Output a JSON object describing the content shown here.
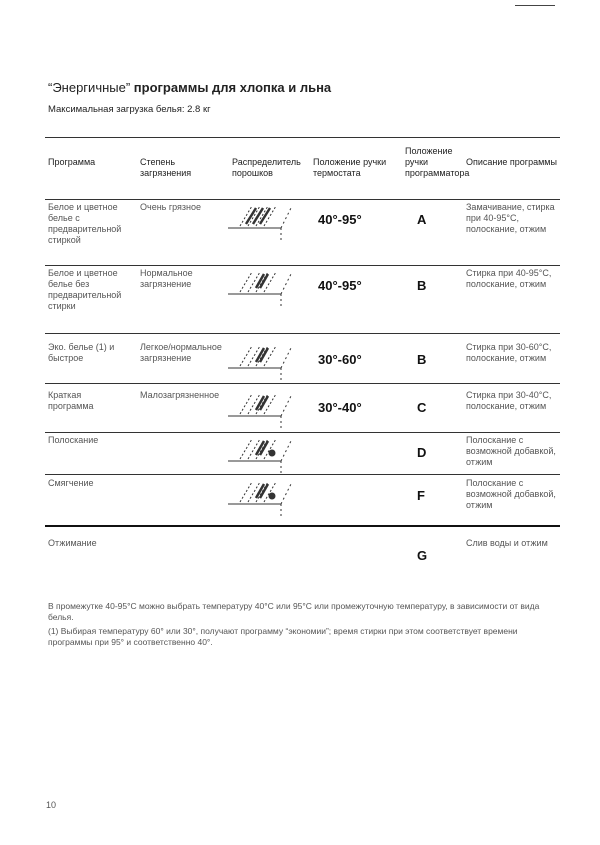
{
  "title": {
    "quoted": "“Энергичные”",
    "rest": " программы для хлопка и льна"
  },
  "subtitle": "Максимальная загрузка белья: 2.8 кг",
  "headers": [
    "Программа",
    "Степень загрязнения",
    "Распределитель порошков",
    "Положение ручки термостата",
    "Положение ручки программатора",
    "Описание программы"
  ],
  "rows": [
    {
      "program": "Белое и цветное белье с предварительной стиркой",
      "soil": "Очень грязное",
      "dispenser_icon": "detergent-dispenser-prewash-icon",
      "temp": "40°-95°",
      "position": "A",
      "description": "Замачивание, стирка при 40-95°C, полоскание, отжим"
    },
    {
      "program": "Белое и цветное белье без предварительной стирки",
      "soil": "Нормальное загрязнение",
      "dispenser_icon": "detergent-dispenser-wash-icon",
      "temp": "40°-95°",
      "position": "B",
      "description": "Стирка при 40-95°C, полоскание, отжим"
    },
    {
      "program": "Эко. белье (1) и быстрое",
      "soil": "Легкое/нормальное загрязнение",
      "dispenser_icon": "detergent-dispenser-wash-icon",
      "temp": "30°-60°",
      "position": "B",
      "description": "Стирка при 30-60°C, полоскание, отжим"
    },
    {
      "program": "Краткая программа",
      "soil": "Малозагрязненное",
      "dispenser_icon": "detergent-dispenser-wash-icon",
      "temp": "30°-40°",
      "position": "C",
      "description": "Стирка при 30-40°C, полоскание, отжим"
    },
    {
      "program": "Полоскание",
      "soil": "",
      "dispenser_icon": "detergent-dispenser-softener-icon",
      "temp": "",
      "position": "D",
      "description": "Полоскание с возможной добавкой, отжим"
    },
    {
      "program": "Смягчение",
      "soil": "",
      "dispenser_icon": "detergent-dispenser-softener-icon",
      "temp": "",
      "position": "F",
      "description": "Полоскание с возможной добавкой, отжим"
    },
    {
      "program": "Отжимание",
      "soil": "",
      "dispenser_icon": "",
      "temp": "",
      "position": "G",
      "description": "Слив воды и отжим"
    }
  ],
  "footnotes": [
    "В промежутке 40-95°C можно выбрать температуру 40°C или 95°C или промежуточную температуру, в зависимости от вида белья.",
    "(1) Выбирая температуру 60° или 30°, получают программу “экономии”; время стирки при этом соответствует времени программы при 95° и соответственно 40°."
  ],
  "page_number": "10"
}
